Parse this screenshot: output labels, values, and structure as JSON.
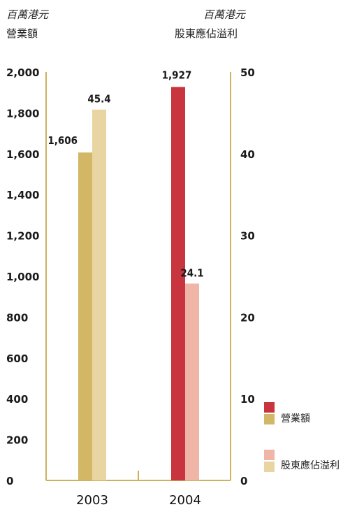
{
  "left_axis": {
    "unit": "百萬港元",
    "title": "營業額"
  },
  "right_axis": {
    "unit": "百萬港元",
    "title": "股東應佔溢利"
  },
  "legend": [
    {
      "label": "營業額",
      "colors": [
        "#c8353e",
        "#d1b766"
      ]
    },
    {
      "label": "股東應佔溢利",
      "colors": [
        "#efb5a7",
        "#e8d5a2"
      ]
    }
  ],
  "colors": {
    "axis": "#cdb15c",
    "revenue_2003": "#d1b766",
    "profit_2003": "#e8d5a2",
    "revenue_2004": "#c8353e",
    "profit_2004": "#efb5a7"
  },
  "chart_data": {
    "type": "bar",
    "categories": [
      "2003",
      "2004"
    ],
    "series": [
      {
        "name": "營業額",
        "axis": "left",
        "values": [
          1606,
          1927
        ],
        "labels": [
          "1,606",
          "1,927"
        ]
      },
      {
        "name": "股東應佔溢利",
        "axis": "right",
        "values": [
          45.4,
          24.1
        ],
        "labels": [
          "45.4",
          "24.1"
        ]
      }
    ],
    "left_ylim": [
      0,
      2000
    ],
    "left_ticks": [
      0,
      200,
      400,
      600,
      800,
      1000,
      1200,
      1400,
      1600,
      1800,
      2000
    ],
    "left_tick_labels": [
      "0",
      "200",
      "400",
      "600",
      "800",
      "1,000",
      "1,200",
      "1,400",
      "1,600",
      "1,800",
      "2,000"
    ],
    "right_ylim": [
      0,
      50
    ],
    "right_ticks": [
      0,
      10,
      20,
      30,
      40,
      50
    ],
    "right_tick_labels": [
      "0",
      "10",
      "20",
      "30",
      "40",
      "50"
    ],
    "grid": false,
    "legend_position": "bottom-right"
  }
}
